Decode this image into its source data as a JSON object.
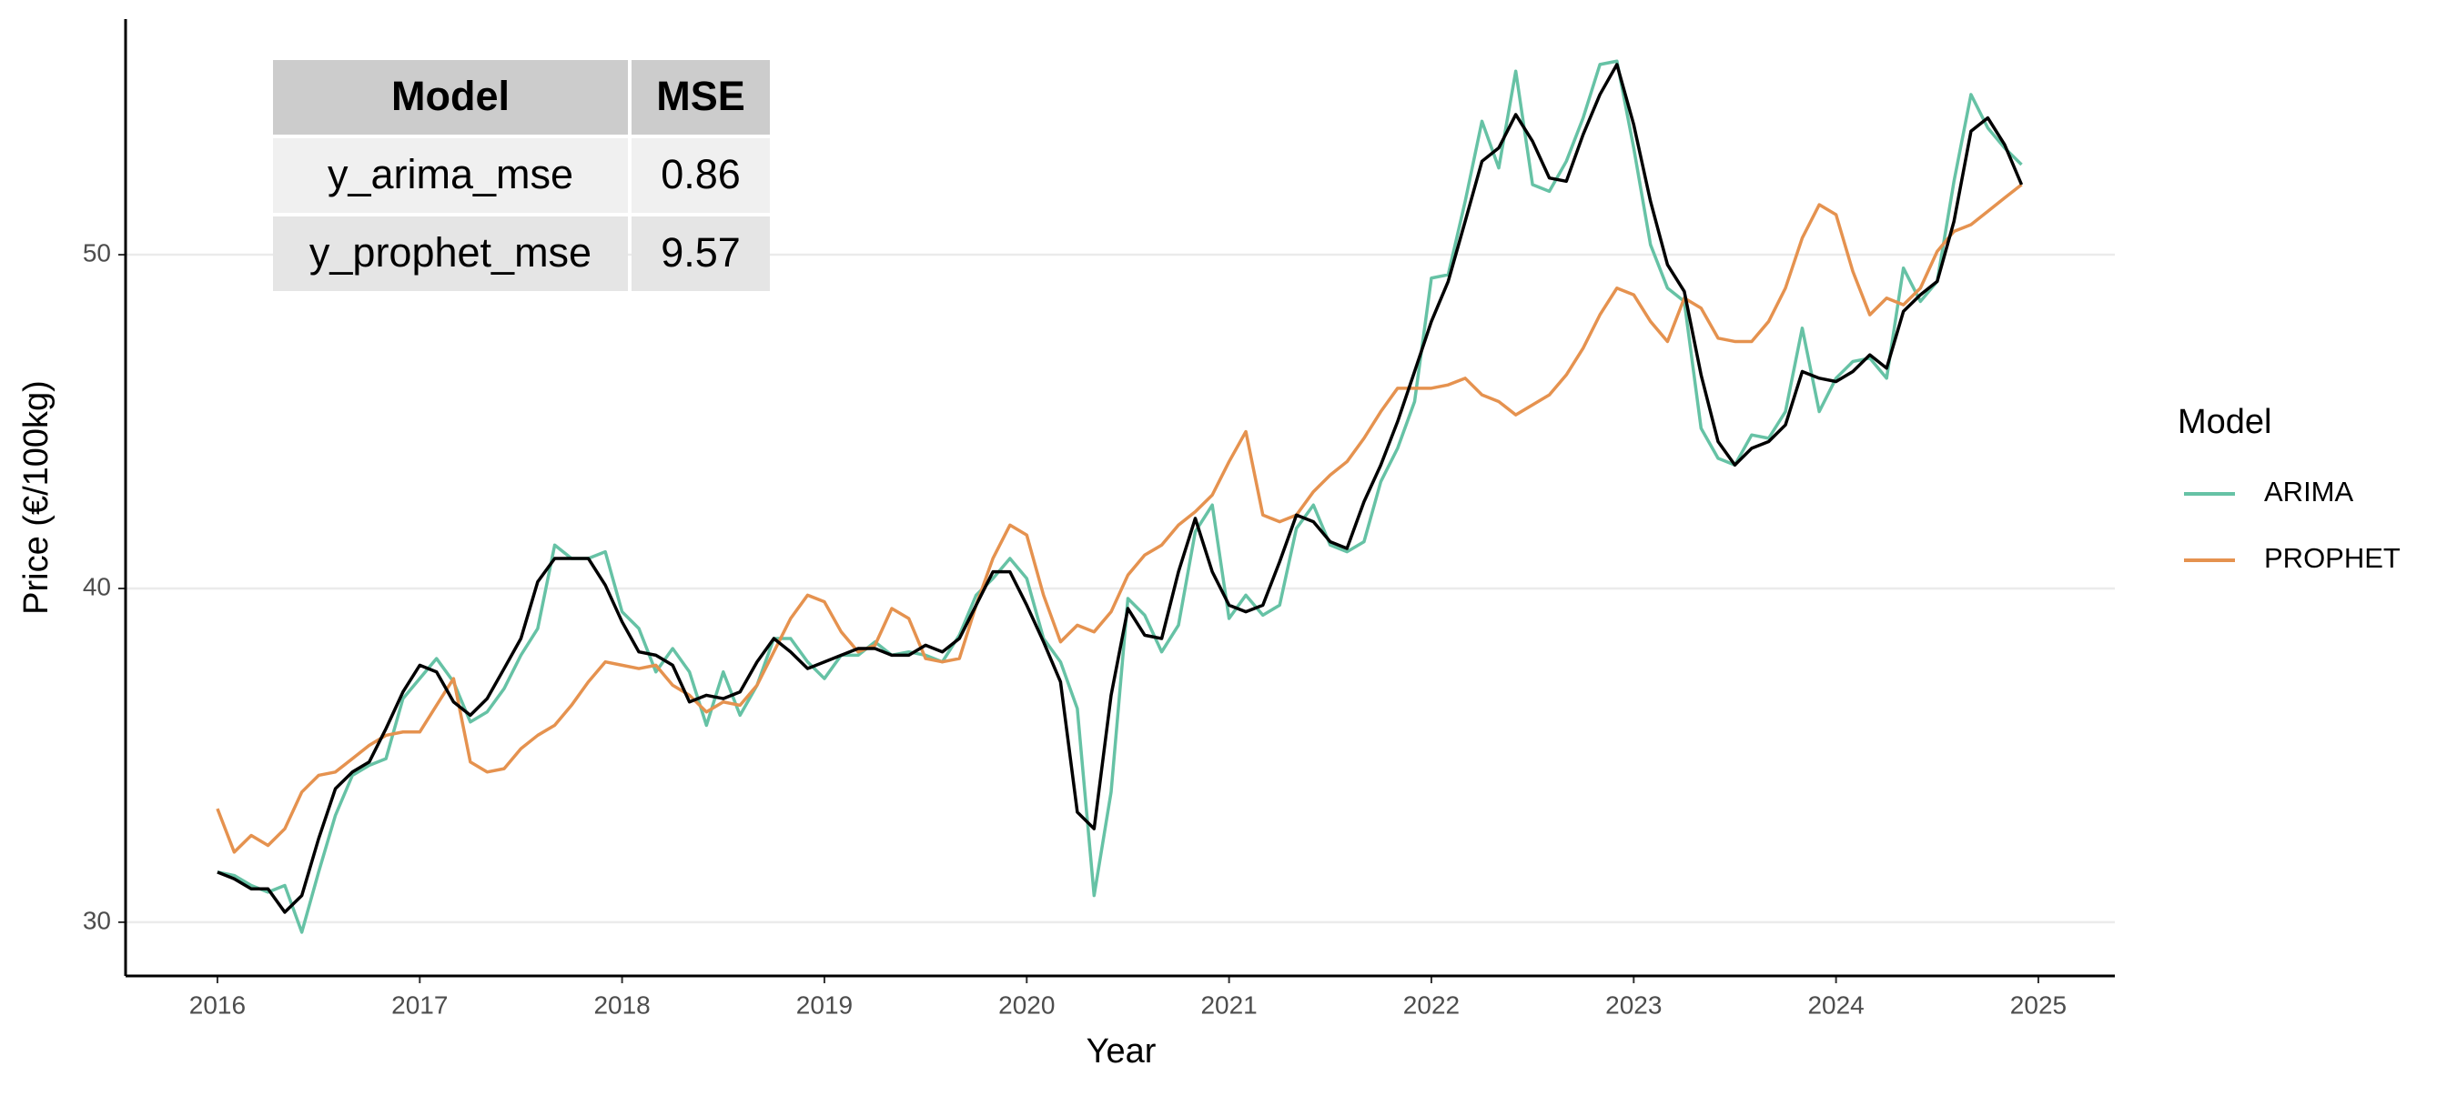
{
  "chart_data": {
    "type": "line",
    "x_label": "Year",
    "y_label": "Price (€/100kg)",
    "legend_title": "Model",
    "legend_position": "right",
    "grid": true,
    "xlim": [
      2015.546,
      2025.378
    ],
    "xticks": [
      2016,
      2017,
      2018,
      2019,
      2020,
      2021,
      2022,
      2023,
      2024,
      2025
    ],
    "ylim": [
      28.39,
      57.06
    ],
    "yticks": [
      30,
      40,
      50
    ],
    "x": [
      2016,
      2016.083,
      2016.167,
      2016.25,
      2016.333,
      2016.417,
      2016.5,
      2016.583,
      2016.667,
      2016.75,
      2016.833,
      2016.917,
      2017,
      2017.083,
      2017.167,
      2017.25,
      2017.333,
      2017.417,
      2017.5,
      2017.583,
      2017.667,
      2017.75,
      2017.833,
      2017.917,
      2018,
      2018.083,
      2018.167,
      2018.25,
      2018.333,
      2018.417,
      2018.5,
      2018.583,
      2018.667,
      2018.75,
      2018.833,
      2018.917,
      2019,
      2019.083,
      2019.167,
      2019.25,
      2019.333,
      2019.417,
      2019.5,
      2019.583,
      2019.667,
      2019.75,
      2019.833,
      2019.917,
      2020,
      2020.083,
      2020.167,
      2020.25,
      2020.333,
      2020.417,
      2020.5,
      2020.583,
      2020.667,
      2020.75,
      2020.833,
      2020.917,
      2021,
      2021.083,
      2021.167,
      2021.25,
      2021.333,
      2021.417,
      2021.5,
      2021.583,
      2021.667,
      2021.75,
      2021.833,
      2021.917,
      2022,
      2022.083,
      2022.167,
      2022.25,
      2022.333,
      2022.417,
      2022.5,
      2022.583,
      2022.667,
      2022.75,
      2022.833,
      2022.917,
      2023,
      2023.083,
      2023.167,
      2023.25,
      2023.333,
      2023.417,
      2023.5,
      2023.583,
      2023.667,
      2023.75,
      2023.833,
      2023.917,
      2024,
      2024.083,
      2024.167,
      2024.25,
      2024.333,
      2024.417,
      2024.5,
      2024.583,
      2024.667,
      2024.75,
      2024.833,
      2024.917
    ],
    "series": [
      {
        "name": "ARIMA",
        "color": "#66c2a5",
        "values": [
          31.5,
          31.4,
          31.1,
          30.9,
          31.1,
          29.7,
          31.5,
          33.2,
          34.4,
          34.7,
          34.9,
          36.7,
          37.3,
          37.9,
          37.2,
          36.0,
          36.3,
          37.0,
          38.0,
          38.8,
          41.3,
          40.9,
          40.9,
          41.1,
          39.3,
          38.8,
          37.5,
          38.2,
          37.5,
          35.9,
          37.5,
          36.2,
          37.1,
          38.5,
          38.5,
          37.8,
          37.3,
          38.0,
          38.0,
          38.4,
          38.0,
          38.1,
          38.0,
          37.8,
          38.6,
          39.8,
          40.3,
          40.9,
          40.3,
          38.5,
          37.8,
          36.4,
          30.8,
          33.9,
          39.7,
          39.2,
          38.1,
          38.9,
          41.7,
          42.5,
          39.1,
          39.8,
          39.2,
          39.5,
          41.8,
          42.5,
          41.3,
          41.1,
          41.4,
          43.2,
          44.2,
          45.6,
          49.3,
          49.4,
          51.6,
          54.0,
          52.6,
          55.5,
          52.1,
          51.9,
          52.8,
          54.1,
          55.7,
          55.8,
          53.2,
          50.3,
          49.0,
          48.6,
          44.8,
          43.9,
          43.7,
          44.6,
          44.5,
          45.3,
          47.8,
          45.3,
          46.3,
          46.8,
          46.9,
          46.3,
          49.6,
          48.6,
          49.2,
          52.2,
          54.8,
          53.8,
          53.2,
          52.7
        ]
      },
      {
        "name": "PROPHET",
        "color": "#e5924f",
        "values": [
          33.4,
          32.1,
          32.6,
          32.3,
          32.8,
          33.9,
          34.4,
          34.5,
          34.9,
          35.3,
          35.6,
          35.7,
          35.7,
          36.5,
          37.3,
          34.8,
          34.5,
          34.6,
          35.2,
          35.6,
          35.9,
          36.5,
          37.2,
          37.8,
          37.7,
          37.6,
          37.7,
          37.1,
          36.8,
          36.3,
          36.6,
          36.5,
          37.1,
          38.1,
          39.1,
          39.8,
          39.6,
          38.7,
          38.1,
          38.3,
          39.4,
          39.1,
          37.9,
          37.8,
          37.9,
          39.5,
          40.9,
          41.9,
          41.6,
          39.8,
          38.4,
          38.9,
          38.7,
          39.3,
          40.4,
          41.0,
          41.3,
          41.9,
          42.3,
          42.8,
          43.8,
          44.7,
          42.2,
          42.0,
          42.2,
          42.9,
          43.4,
          43.8,
          44.5,
          45.3,
          46.0,
          46.0,
          46.0,
          46.1,
          46.3,
          45.8,
          45.6,
          45.2,
          45.5,
          45.8,
          46.4,
          47.2,
          48.2,
          49.0,
          48.8,
          48.0,
          47.4,
          48.7,
          48.4,
          47.5,
          47.4,
          47.4,
          48.0,
          49.0,
          50.5,
          51.5,
          51.2,
          49.5,
          48.2,
          48.7,
          48.5,
          49.0,
          50.1,
          50.7,
          50.9,
          51.3,
          51.7,
          52.1
        ]
      },
      {
        "color": "#000000",
        "values": [
          31.5,
          31.3,
          31.0,
          31.0,
          30.3,
          30.8,
          32.5,
          34.0,
          34.5,
          34.8,
          35.8,
          36.9,
          37.7,
          37.5,
          36.6,
          36.2,
          36.7,
          37.6,
          38.5,
          40.2,
          40.9,
          40.9,
          40.9,
          40.1,
          39.0,
          38.1,
          38.0,
          37.7,
          36.6,
          36.8,
          36.7,
          36.9,
          37.8,
          38.5,
          38.1,
          37.6,
          37.8,
          38.0,
          38.2,
          38.2,
          38.0,
          38.0,
          38.3,
          38.1,
          38.5,
          39.5,
          40.5,
          40.5,
          39.5,
          38.4,
          37.2,
          33.3,
          32.8,
          36.8,
          39.4,
          38.6,
          38.5,
          40.5,
          42.1,
          40.5,
          39.5,
          39.3,
          39.5,
          40.8,
          42.2,
          42.0,
          41.4,
          41.2,
          42.6,
          43.7,
          45.0,
          46.5,
          48.0,
          49.2,
          51.0,
          52.8,
          53.2,
          54.2,
          53.4,
          52.3,
          52.2,
          53.6,
          54.8,
          55.7,
          53.9,
          51.6,
          49.7,
          48.9,
          46.4,
          44.4,
          43.7,
          44.2,
          44.4,
          44.9,
          46.5,
          46.3,
          46.2,
          46.5,
          47.0,
          46.6,
          48.3,
          48.8,
          49.2,
          51.0,
          53.7,
          54.1,
          53.3,
          52.1
        ]
      }
    ],
    "table": {
      "header": [
        "Model",
        "MSE"
      ],
      "rows": [
        [
          "y_arima_mse",
          0.86
        ],
        [
          "y_prophet_mse",
          9.57
        ]
      ]
    }
  }
}
